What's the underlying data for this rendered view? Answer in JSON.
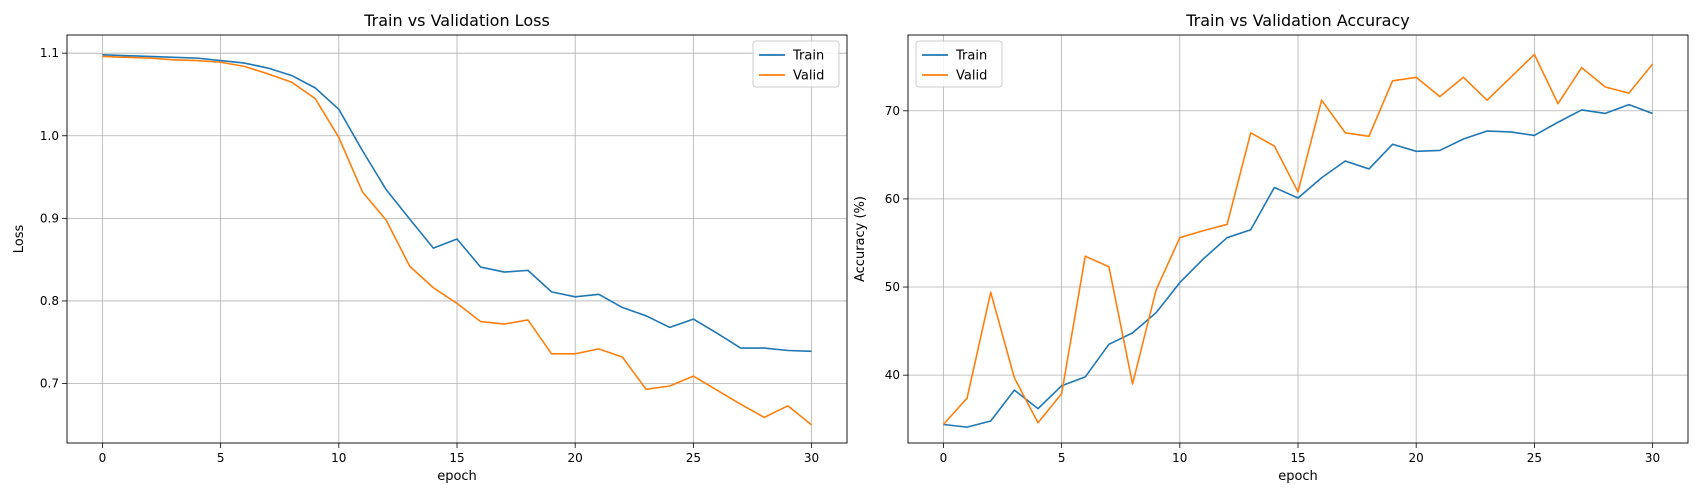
{
  "chart_data": [
    {
      "type": "line",
      "title": "Train vs Validation Loss",
      "xlabel": "epoch",
      "ylabel": "Loss",
      "xlim": [
        -1.5,
        31.5
      ],
      "ylim": [
        0.628,
        1.122
      ],
      "xticks": [
        0,
        5,
        10,
        15,
        20,
        25,
        30
      ],
      "xtick_labels": [
        "0",
        "5",
        "10",
        "15",
        "20",
        "25",
        "30"
      ],
      "yticks": [
        0.7,
        0.8,
        0.9,
        1.0,
        1.1
      ],
      "ytick_labels": [
        "0.7",
        "0.8",
        "0.9",
        "1.0",
        "1.1"
      ],
      "grid": true,
      "legend_position": "top-right",
      "x": [
        0,
        1,
        2,
        3,
        4,
        5,
        6,
        7,
        8,
        9,
        10,
        11,
        12,
        13,
        14,
        15,
        16,
        17,
        18,
        19,
        20,
        21,
        22,
        23,
        24,
        25,
        26,
        27,
        28,
        29,
        30
      ],
      "series": [
        {
          "name": "Train",
          "color": "#1f77b4",
          "values": [
            1.098,
            1.097,
            1.096,
            1.095,
            1.094,
            1.091,
            1.088,
            1.082,
            1.073,
            1.058,
            1.032,
            0.982,
            0.935,
            0.899,
            0.864,
            0.875,
            0.841,
            0.835,
            0.837,
            0.811,
            0.805,
            0.808,
            0.792,
            0.782,
            0.768,
            0.778,
            0.761,
            0.743,
            0.743,
            0.74,
            0.739
          ]
        },
        {
          "name": "Valid",
          "color": "#ff7f0e",
          "values": [
            1.096,
            1.095,
            1.094,
            1.092,
            1.091,
            1.089,
            1.084,
            1.075,
            1.065,
            1.045,
            0.998,
            0.932,
            0.898,
            0.842,
            0.816,
            0.797,
            0.775,
            0.772,
            0.777,
            0.736,
            0.736,
            0.742,
            0.732,
            0.693,
            0.697,
            0.709,
            0.692,
            0.675,
            0.659,
            0.673,
            0.65
          ]
        }
      ]
    },
    {
      "type": "line",
      "title": "Train vs Validation Accuracy",
      "xlabel": "epoch",
      "ylabel": "Accuracy (%)",
      "xlim": [
        -1.5,
        31.5
      ],
      "ylim": [
        32.3,
        78.6
      ],
      "xticks": [
        0,
        5,
        10,
        15,
        20,
        25,
        30
      ],
      "xtick_labels": [
        "0",
        "5",
        "10",
        "15",
        "20",
        "25",
        "30"
      ],
      "yticks": [
        40,
        50,
        60,
        70
      ],
      "ytick_labels": [
        "40",
        "50",
        "60",
        "70"
      ],
      "grid": true,
      "legend_position": "top-left",
      "x": [
        0,
        1,
        2,
        3,
        4,
        5,
        6,
        7,
        8,
        9,
        10,
        11,
        12,
        13,
        14,
        15,
        16,
        17,
        18,
        19,
        20,
        21,
        22,
        23,
        24,
        25,
        26,
        27,
        28,
        29,
        30
      ],
      "series": [
        {
          "name": "Train",
          "color": "#1f77b4",
          "values": [
            34.4,
            34.1,
            34.8,
            38.3,
            36.2,
            38.8,
            39.8,
            43.5,
            44.8,
            47.1,
            50.5,
            53.2,
            55.6,
            56.5,
            61.3,
            60.1,
            62.4,
            64.3,
            63.4,
            66.2,
            65.4,
            65.5,
            66.8,
            67.7,
            67.6,
            67.2,
            68.7,
            70.1,
            69.7,
            70.7,
            69.7
          ]
        },
        {
          "name": "Valid",
          "color": "#ff7f0e",
          "values": [
            34.4,
            37.4,
            49.4,
            39.7,
            34.6,
            37.9,
            53.5,
            52.3,
            39.0,
            49.7,
            55.6,
            56.4,
            57.1,
            67.5,
            66.0,
            60.8,
            71.2,
            67.5,
            67.1,
            73.4,
            73.8,
            71.6,
            73.8,
            71.2,
            73.8,
            76.4,
            70.8,
            74.9,
            72.7,
            72.0,
            75.3
          ]
        }
      ]
    }
  ]
}
